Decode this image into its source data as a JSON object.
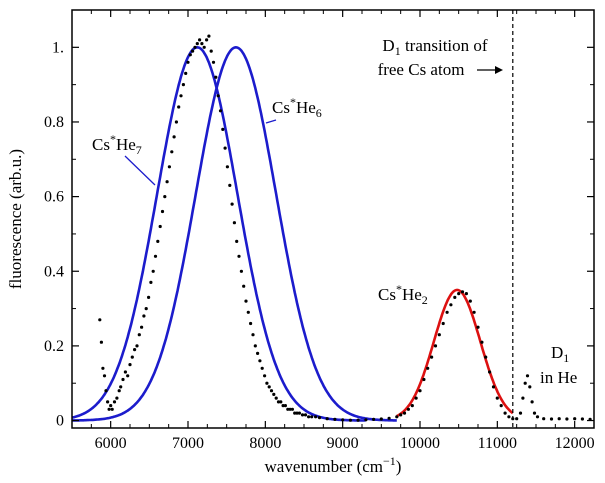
{
  "chart_data": {
    "type": "line",
    "xlabel": "wavenumber (cm",
    "xlabel_sup": "−1",
    "xlabel_end": ")",
    "ylabel": "fluorescence  (arb.u.)",
    "xlim": [
      5500,
      12250
    ],
    "ylim": [
      -0.02,
      1.1
    ],
    "x_ticks": [
      6000,
      7000,
      8000,
      9000,
      10000,
      11000,
      12000
    ],
    "y_ticks": [
      0,
      0.2,
      0.4,
      0.6,
      0.8,
      1.0
    ],
    "y_tick_labels": [
      "0",
      "0.2",
      "0.4",
      "0.6",
      "0.8",
      "1."
    ],
    "grid": false,
    "series": [
      {
        "name": "Cs*He7",
        "kind": "gaussian",
        "center": 7120,
        "sigma": 520,
        "amplitude": 1.0,
        "x_range": [
          5500,
          9300
        ],
        "color": "#1c1ccc"
      },
      {
        "name": "Cs*He6",
        "kind": "gaussian",
        "center": 7620,
        "sigma": 520,
        "amplitude": 1.0,
        "x_range": [
          5500,
          9700
        ],
        "color": "#1c1ccc"
      },
      {
        "name": "Cs*He2",
        "kind": "gaussian",
        "center": 10480,
        "sigma": 300,
        "amplitude": 0.35,
        "x_range": [
          9700,
          11200
        ],
        "color": "#dd1111"
      }
    ],
    "measured_points": [
      [
        5860,
        0.27
      ],
      [
        5880,
        0.21
      ],
      [
        5900,
        0.14
      ],
      [
        5920,
        0.12
      ],
      [
        5940,
        0.08
      ],
      [
        5960,
        0.05
      ],
      [
        5980,
        0.03
      ],
      [
        6000,
        0.04
      ],
      [
        6020,
        0.03
      ],
      [
        6050,
        0.05
      ],
      [
        6080,
        0.06
      ],
      [
        6110,
        0.08
      ],
      [
        6130,
        0.09
      ],
      [
        6160,
        0.11
      ],
      [
        6190,
        0.13
      ],
      [
        6220,
        0.12
      ],
      [
        6250,
        0.15
      ],
      [
        6280,
        0.17
      ],
      [
        6310,
        0.19
      ],
      [
        6340,
        0.2
      ],
      [
        6370,
        0.23
      ],
      [
        6400,
        0.25
      ],
      [
        6430,
        0.28
      ],
      [
        6460,
        0.3
      ],
      [
        6490,
        0.33
      ],
      [
        6520,
        0.37
      ],
      [
        6550,
        0.4
      ],
      [
        6580,
        0.44
      ],
      [
        6610,
        0.48
      ],
      [
        6640,
        0.52
      ],
      [
        6670,
        0.56
      ],
      [
        6700,
        0.6
      ],
      [
        6730,
        0.64
      ],
      [
        6760,
        0.68
      ],
      [
        6790,
        0.72
      ],
      [
        6820,
        0.76
      ],
      [
        6850,
        0.8
      ],
      [
        6880,
        0.84
      ],
      [
        6910,
        0.87
      ],
      [
        6940,
        0.9
      ],
      [
        6970,
        0.93
      ],
      [
        7000,
        0.96
      ],
      [
        7030,
        0.98
      ],
      [
        7060,
        0.99
      ],
      [
        7090,
        1.0
      ],
      [
        7120,
        1.01
      ],
      [
        7150,
        1.02
      ],
      [
        7180,
        1.01
      ],
      [
        7210,
        1.0
      ],
      [
        7240,
        1.02
      ],
      [
        7270,
        1.03
      ],
      [
        7300,
        0.99
      ],
      [
        7330,
        0.96
      ],
      [
        7360,
        0.92
      ],
      [
        7390,
        0.87
      ],
      [
        7420,
        0.83
      ],
      [
        7450,
        0.78
      ],
      [
        7480,
        0.73
      ],
      [
        7510,
        0.68
      ],
      [
        7540,
        0.63
      ],
      [
        7570,
        0.58
      ],
      [
        7600,
        0.53
      ],
      [
        7630,
        0.48
      ],
      [
        7660,
        0.44
      ],
      [
        7690,
        0.4
      ],
      [
        7720,
        0.36
      ],
      [
        7750,
        0.32
      ],
      [
        7780,
        0.29
      ],
      [
        7810,
        0.26
      ],
      [
        7840,
        0.23
      ],
      [
        7870,
        0.2
      ],
      [
        7900,
        0.18
      ],
      [
        7930,
        0.16
      ],
      [
        7960,
        0.14
      ],
      [
        7990,
        0.12
      ],
      [
        8020,
        0.1
      ],
      [
        8050,
        0.09
      ],
      [
        8080,
        0.08
      ],
      [
        8110,
        0.07
      ],
      [
        8140,
        0.06
      ],
      [
        8170,
        0.05
      ],
      [
        8200,
        0.05
      ],
      [
        8230,
        0.04
      ],
      [
        8260,
        0.04
      ],
      [
        8290,
        0.03
      ],
      [
        8320,
        0.03
      ],
      [
        8350,
        0.03
      ],
      [
        8380,
        0.02
      ],
      [
        8410,
        0.02
      ],
      [
        8440,
        0.02
      ],
      [
        8480,
        0.015
      ],
      [
        8520,
        0.015
      ],
      [
        8560,
        0.01
      ],
      [
        8600,
        0.01
      ],
      [
        8650,
        0.01
      ],
      [
        8700,
        0.008
      ],
      [
        8800,
        0.005
      ],
      [
        8900,
        0.003
      ],
      [
        9000,
        0.002
      ],
      [
        9100,
        0.001
      ],
      [
        9200,
        0.001
      ],
      [
        9300,
        0.002
      ],
      [
        9400,
        0.003
      ],
      [
        9500,
        0.004
      ],
      [
        9600,
        0.006
      ],
      [
        9700,
        0.01
      ],
      [
        9750,
        0.015
      ],
      [
        9800,
        0.02
      ],
      [
        9850,
        0.03
      ],
      [
        9900,
        0.04
      ],
      [
        9950,
        0.06
      ],
      [
        10000,
        0.08
      ],
      [
        10050,
        0.11
      ],
      [
        10100,
        0.14
      ],
      [
        10150,
        0.17
      ],
      [
        10200,
        0.2
      ],
      [
        10250,
        0.23
      ],
      [
        10300,
        0.26
      ],
      [
        10350,
        0.29
      ],
      [
        10400,
        0.31
      ],
      [
        10450,
        0.33
      ],
      [
        10500,
        0.34
      ],
      [
        10550,
        0.345
      ],
      [
        10600,
        0.34
      ],
      [
        10650,
        0.32
      ],
      [
        10700,
        0.29
      ],
      [
        10750,
        0.25
      ],
      [
        10800,
        0.21
      ],
      [
        10850,
        0.17
      ],
      [
        10900,
        0.13
      ],
      [
        10950,
        0.09
      ],
      [
        11000,
        0.06
      ],
      [
        11050,
        0.04
      ],
      [
        11100,
        0.02
      ],
      [
        11150,
        0.01
      ],
      [
        11200,
        0.005
      ],
      [
        11250,
        0.005
      ],
      [
        11300,
        0.02
      ],
      [
        11330,
        0.06
      ],
      [
        11360,
        0.1
      ],
      [
        11390,
        0.12
      ],
      [
        11420,
        0.09
      ],
      [
        11450,
        0.05
      ],
      [
        11480,
        0.02
      ],
      [
        11520,
        0.01
      ],
      [
        11600,
        0.005
      ],
      [
        11700,
        0.004
      ],
      [
        11800,
        0.005
      ],
      [
        11900,
        0.004
      ],
      [
        12000,
        0.005
      ],
      [
        12100,
        0.004
      ],
      [
        12200,
        0.003
      ]
    ],
    "dashed_line_x": 11200,
    "annotations": {
      "d1_line1_main": "D",
      "d1_line1_sub": "1",
      "d1_line1_rest": " transition of",
      "d1_line2": "free Cs atom",
      "he7_main": "Cs",
      "he7_sup": "*",
      "he7_mid": "He",
      "he7_sub": "7",
      "he6_main": "Cs",
      "he6_sup": "*",
      "he6_mid": "He",
      "he6_sub": "6",
      "he2_main": "Cs",
      "he2_sup": "*",
      "he2_mid": "He",
      "he2_sub": "2",
      "d1he_main": "D",
      "d1he_sub": "1",
      "d1he_line2": "in He"
    }
  }
}
